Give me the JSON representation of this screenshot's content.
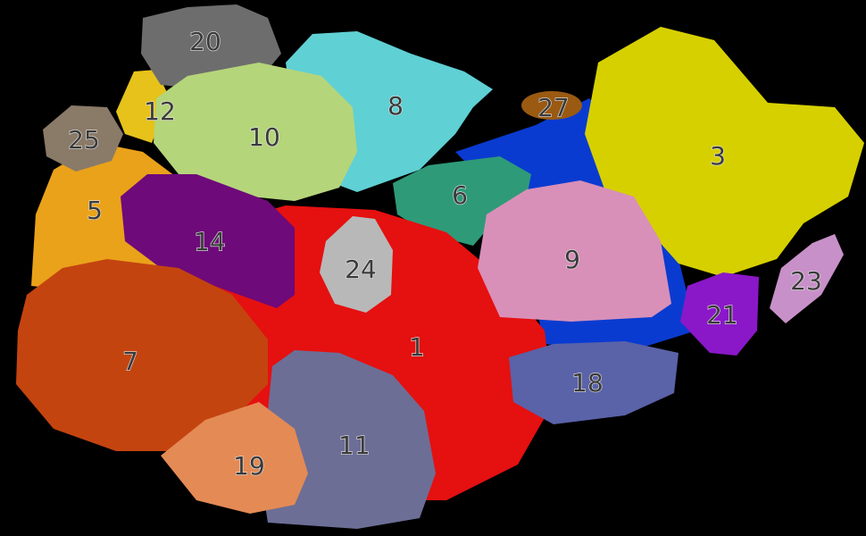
{
  "regions": [
    {
      "label": "20"
    },
    {
      "label": "8"
    },
    {
      "label": "27"
    },
    {
      "label": "3"
    },
    {
      "label": "12"
    },
    {
      "label": "25"
    },
    {
      "label": "10"
    },
    {
      "label": "6"
    },
    {
      "label": "5"
    },
    {
      "label": "14"
    },
    {
      "label": "24"
    },
    {
      "label": "9"
    },
    {
      "label": "23"
    },
    {
      "label": "21"
    },
    {
      "label": "1"
    },
    {
      "label": "7"
    },
    {
      "label": "18"
    },
    {
      "label": "11"
    },
    {
      "label": "19"
    }
  ]
}
